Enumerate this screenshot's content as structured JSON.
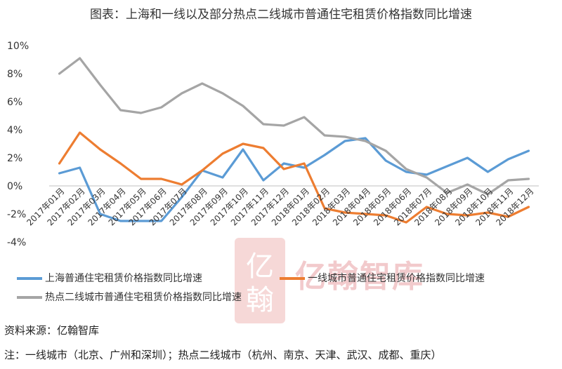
{
  "chart_data": {
    "type": "line",
    "title": "图表：上海和一线以及部分热点二线城市普通住宅租赁价格指数同比增速",
    "categories": [
      "2017年01月",
      "2017年02月",
      "2017年03月",
      "2017年04月",
      "2017年05月",
      "2017年06月",
      "2017年07月",
      "2017年08月",
      "2017年09月",
      "2017年10月",
      "2017年11月",
      "2017年12月",
      "2018年01月",
      "2018年02月",
      "2018年03月",
      "2018年04月",
      "2018年05月",
      "2018年06月",
      "2018年07月",
      "2018年08月",
      "2018年09月",
      "2018年10月",
      "2018年11月",
      "2018年12月"
    ],
    "ylim": [
      -4,
      10
    ],
    "yticks": [
      "-4%",
      "-2%",
      "0%",
      "2%",
      "4%",
      "6%",
      "8%",
      "10%"
    ],
    "grid": false,
    "legend_position": "bottom",
    "series": [
      {
        "name": "上海普通住宅租赁价格指数同比增速",
        "color": "#5b9bd5",
        "values": [
          0.9,
          1.3,
          -2.0,
          -2.5,
          -2.5,
          -2.5,
          -0.8,
          1.1,
          0.6,
          2.6,
          0.4,
          1.6,
          1.3,
          2.2,
          3.2,
          3.4,
          1.8,
          1.0,
          0.8,
          1.4,
          2.0,
          1.0,
          1.9,
          2.5
        ]
      },
      {
        "name": "一线城市普通住宅租赁价格指数同比增速",
        "color": "#ed7d31",
        "values": [
          1.6,
          3.8,
          2.6,
          1.6,
          0.5,
          0.5,
          0.1,
          1.1,
          2.3,
          3.0,
          2.7,
          1.2,
          1.6,
          -1.6,
          -1.9,
          -2.0,
          -2.1,
          -2.6,
          -1.5,
          -2.0,
          -2.1,
          -1.9,
          -2.2,
          -1.5
        ]
      },
      {
        "name": "热点二线城市普通住宅租赁价格指数同比增速",
        "color": "#a5a5a5",
        "values": [
          8.0,
          9.1,
          7.2,
          5.4,
          5.2,
          5.6,
          6.6,
          7.3,
          6.6,
          5.7,
          4.4,
          4.3,
          4.9,
          3.6,
          3.5,
          3.2,
          2.5,
          1.2,
          0.6,
          -0.5,
          0.1,
          -0.6,
          0.4,
          0.5
        ]
      }
    ]
  },
  "source": "资料来源：亿翰智库",
  "footnote": "注：一线城市（北京、广州和深圳）；热点二线城市（杭州、南京、天津、武汉、成都、重庆）",
  "watermark": {
    "brand": "亿翰智库",
    "seal": "亿翰",
    "color": "#e8a0a4"
  }
}
